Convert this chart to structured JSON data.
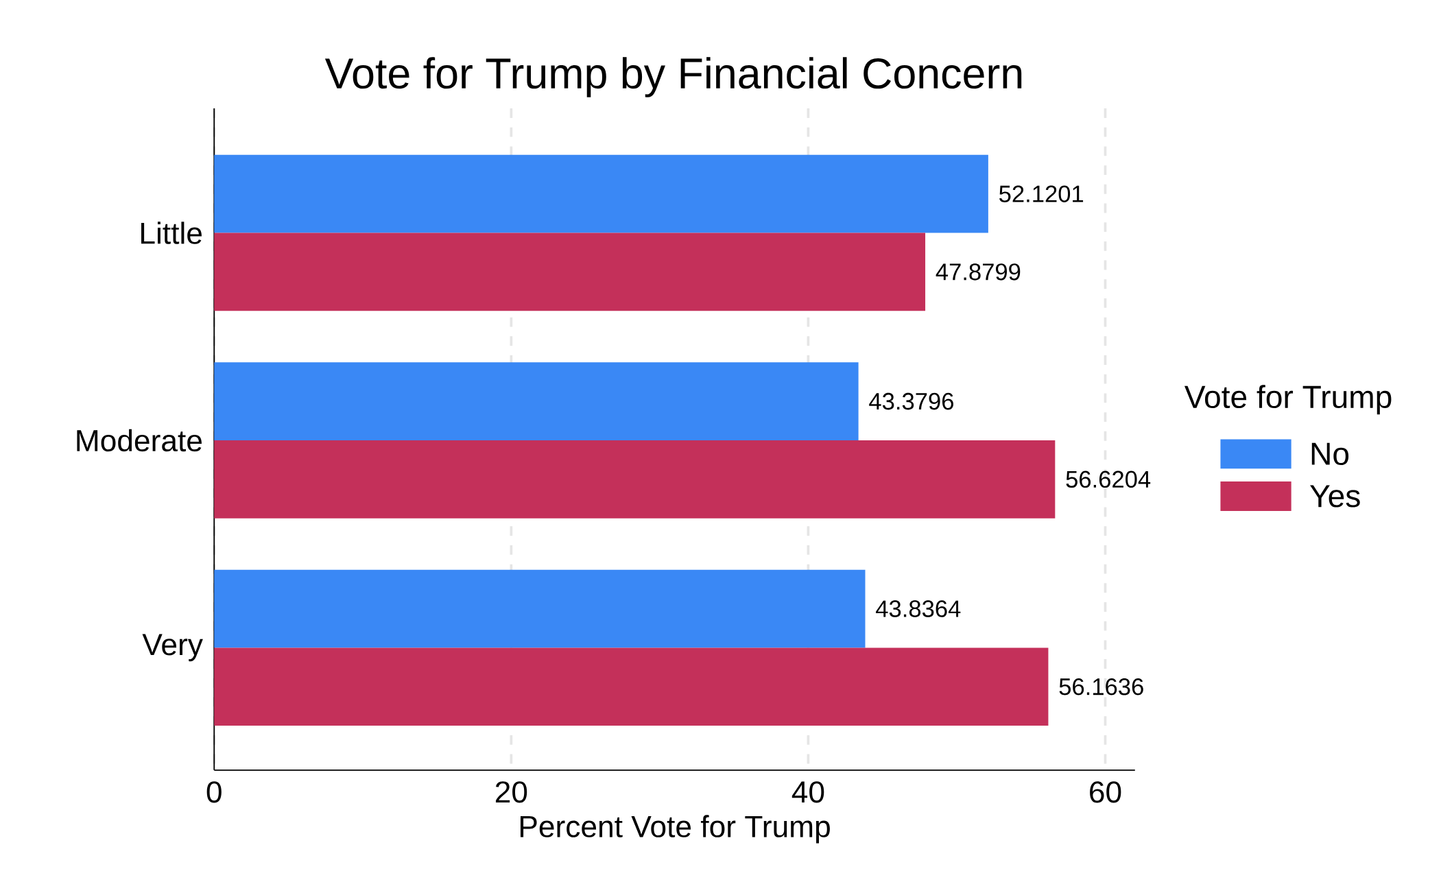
{
  "chart_data": {
    "type": "bar",
    "orientation": "horizontal",
    "title": "Vote for Trump by Financial Concern",
    "xlabel": "Percent Vote for Trump",
    "legend_title": "Vote for Trump",
    "categories": [
      "Little",
      "Moderate",
      "Very"
    ],
    "series": [
      {
        "name": "No",
        "color": "#3a88f5",
        "values": [
          52.1201,
          43.3796,
          43.8364
        ]
      },
      {
        "name": "Yes",
        "color": "#c4305a",
        "values": [
          47.8799,
          56.6204,
          56.1636
        ]
      }
    ],
    "xlim": [
      0,
      62
    ],
    "xticks": [
      0,
      20,
      40,
      60
    ],
    "grid": "x",
    "legend": "right",
    "data_labels": true
  }
}
